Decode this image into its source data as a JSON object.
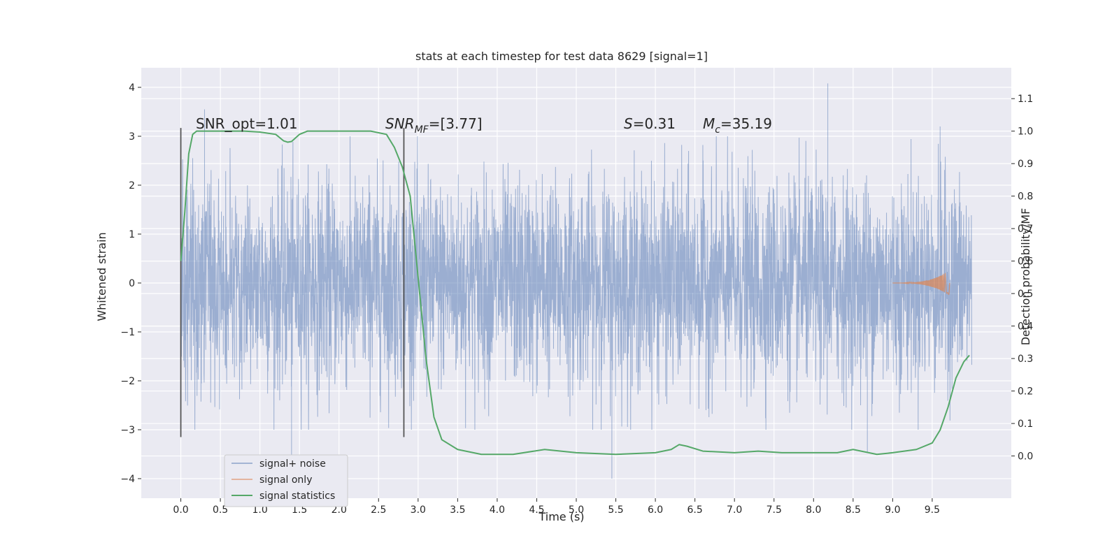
{
  "chart_data": {
    "type": "line",
    "title": "stats at each timestep for test data 8629 [signal=1]",
    "xlabel": "Time (s)",
    "ylabel": "Whitened strain",
    "y2label": "Detection probability/MF",
    "xlim": [
      -0.5,
      10.5
    ],
    "ylim": [
      -4.4,
      4.4
    ],
    "y2lim": [
      -0.13,
      1.195
    ],
    "xticks": [
      "0.0",
      "0.5",
      "1.0",
      "1.5",
      "2.0",
      "2.5",
      "3.0",
      "3.5",
      "4.0",
      "4.5",
      "5.0",
      "5.5",
      "6.0",
      "6.5",
      "7.0",
      "7.5",
      "8.0",
      "8.5",
      "9.0",
      "9.5"
    ],
    "yticks": [
      "4",
      "3",
      "2",
      "1",
      "0",
      "−1",
      "−2",
      "−3",
      "−4"
    ],
    "y2ticks": [
      "1.1",
      "1.0",
      "0.9",
      "0.8",
      "0.7",
      "0.6",
      "0.5",
      "0.4",
      "0.3",
      "0.2",
      "0.1",
      "0.0"
    ],
    "grid": true,
    "legend_position": "lower-left",
    "legend": [
      "signal+ noise",
      "signal only",
      "signal statistics"
    ],
    "colors": {
      "noise": "#4c72b0",
      "signal": "#dd8452",
      "stat": "#55a868",
      "background": "#eaeaf2",
      "marker": "#555555"
    },
    "annotations": {
      "snr_opt": "SNR_opt=1.01",
      "snr_mf_a": "SNR",
      "snr_mf_sub": "MF",
      "snr_mf_b": "=[3.77]",
      "s_a": "S",
      "s_b": "=0.31",
      "mc_a": "M",
      "mc_sub": "c",
      "mc_b": "=35.19"
    },
    "vlines": [
      0.0,
      2.82
    ],
    "series": [
      {
        "name": "signal+ noise",
        "x_range": [
          0.0,
          10.0
        ],
        "typical_amplitude": 1.3,
        "extremes": [
          [
            0.3,
            3.55
          ],
          [
            1.4,
            -3.7
          ],
          [
            5.45,
            -4.0
          ],
          [
            8.18,
            4.08
          ],
          [
            8.68,
            -3.45
          ],
          [
            9.6,
            3.2
          ]
        ]
      },
      {
        "name": "signal only",
        "x_range": [
          9.0,
          9.72
        ],
        "peak_amplitude": 0.25
      },
      {
        "name": "signal statistics",
        "x": [
          0.0,
          0.05,
          0.1,
          0.15,
          0.2,
          0.4,
          0.8,
          1.0,
          1.2,
          1.3,
          1.35,
          1.4,
          1.5,
          1.6,
          2.0,
          2.4,
          2.6,
          2.7,
          2.8,
          2.9,
          3.0,
          3.1,
          3.2,
          3.3,
          3.5,
          3.8,
          4.2,
          4.6,
          5.0,
          5.5,
          6.0,
          6.2,
          6.3,
          6.4,
          6.6,
          7.0,
          7.3,
          7.6,
          8.0,
          8.3,
          8.5,
          8.8,
          9.0,
          9.3,
          9.5,
          9.6,
          9.7,
          9.8,
          9.9,
          9.97
        ],
        "values": [
          0.6,
          0.75,
          0.93,
          0.99,
          1.0,
          1.0,
          1.0,
          0.997,
          0.99,
          0.97,
          0.966,
          0.968,
          0.99,
          1.0,
          1.0,
          1.0,
          0.99,
          0.95,
          0.89,
          0.8,
          0.55,
          0.3,
          0.12,
          0.05,
          0.02,
          0.005,
          0.005,
          0.02,
          0.01,
          0.005,
          0.01,
          0.02,
          0.035,
          0.03,
          0.015,
          0.01,
          0.015,
          0.01,
          0.01,
          0.01,
          0.02,
          0.005,
          0.01,
          0.02,
          0.04,
          0.08,
          0.15,
          0.24,
          0.29,
          0.31
        ]
      }
    ]
  }
}
